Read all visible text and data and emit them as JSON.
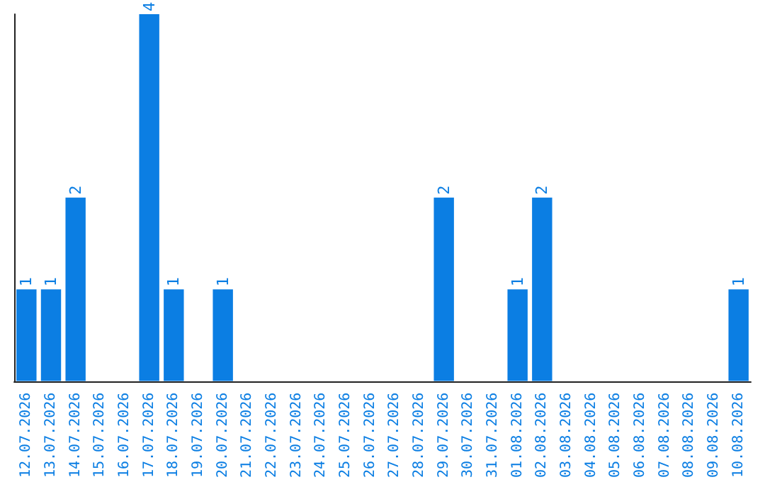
{
  "chart_data": {
    "type": "bar",
    "categories": [
      "12.07.2026",
      "13.07.2026",
      "14.07.2026",
      "15.07.2026",
      "16.07.2026",
      "17.07.2026",
      "18.07.2026",
      "19.07.2026",
      "20.07.2026",
      "21.07.2026",
      "22.07.2026",
      "23.07.2026",
      "24.07.2026",
      "25.07.2026",
      "26.07.2026",
      "27.07.2026",
      "28.07.2026",
      "29.07.2026",
      "30.07.2026",
      "31.07.2026",
      "01.08.2026",
      "02.08.2026",
      "03.08.2026",
      "04.08.2026",
      "05.08.2026",
      "06.08.2026",
      "07.08.2026",
      "08.08.2026",
      "09.08.2026",
      "10.08.2026"
    ],
    "values": [
      1,
      1,
      2,
      null,
      null,
      4,
      1,
      null,
      1,
      null,
      null,
      null,
      null,
      null,
      null,
      null,
      null,
      2,
      null,
      null,
      1,
      2,
      null,
      null,
      null,
      null,
      null,
      null,
      null,
      1
    ],
    "color": "#0b7ee3",
    "data_labels": true,
    "tick_labels": "x",
    "grid": false
  }
}
